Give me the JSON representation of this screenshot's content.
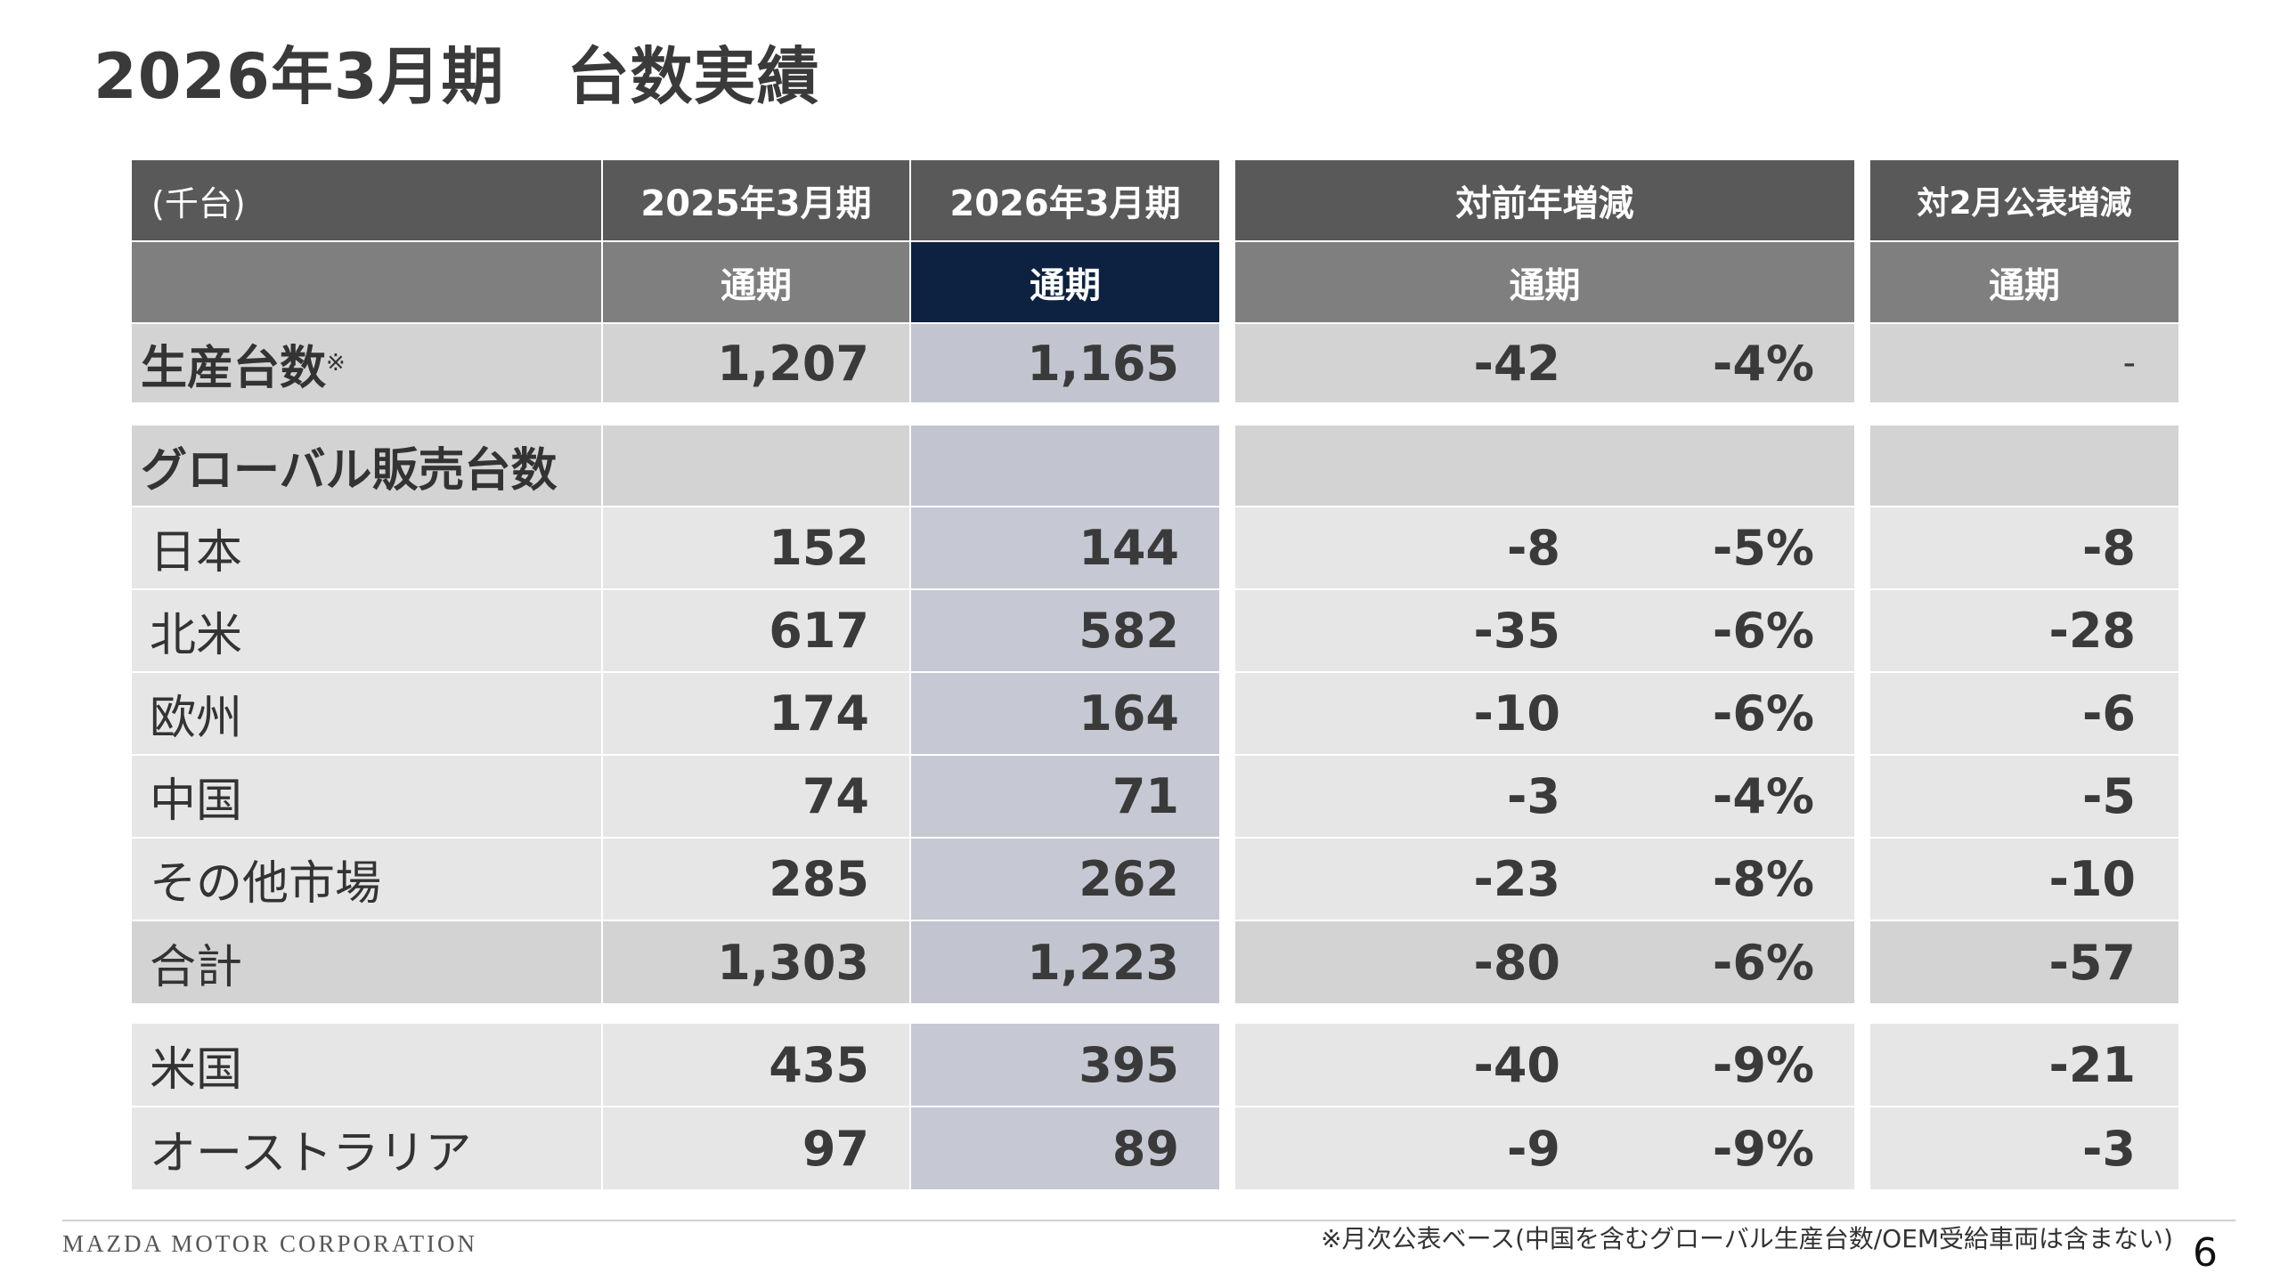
{
  "title": "2026年3月期",
  "subtitle": "台数実績",
  "table": {
    "unit_label": "(千台)",
    "col_fy2025": "2025年3月期",
    "col_fy2026": "2026年3月期",
    "col_yoy": "対前年増減",
    "col_vs_feb": "対2月公表増減",
    "period_label": "通期",
    "production": {
      "label": "生産台数",
      "mark": "※",
      "fy2025": "1,207",
      "fy2026": "1,165",
      "yoy_abs": "-42",
      "yoy_pct": "-4%",
      "vs_feb": "-"
    },
    "global_sales_label": "グローバル販売台数",
    "regions": [
      {
        "label": "日本",
        "fy2025": "152",
        "fy2026": "144",
        "yoy_abs": "-8",
        "yoy_pct": "-5%",
        "vs_feb": "-8"
      },
      {
        "label": "北米",
        "fy2025": "617",
        "fy2026": "582",
        "yoy_abs": "-35",
        "yoy_pct": "-6%",
        "vs_feb": "-28"
      },
      {
        "label": "欧州",
        "fy2025": "174",
        "fy2026": "164",
        "yoy_abs": "-10",
        "yoy_pct": "-6%",
        "vs_feb": "-6"
      },
      {
        "label": "中国",
        "fy2025": "74",
        "fy2026": "71",
        "yoy_abs": "-3",
        "yoy_pct": "-4%",
        "vs_feb": "-5"
      },
      {
        "label": "その他市場",
        "fy2025": "285",
        "fy2026": "262",
        "yoy_abs": "-23",
        "yoy_pct": "-8%",
        "vs_feb": "-10"
      }
    ],
    "total": {
      "label": "合計",
      "fy2025": "1,303",
      "fy2026": "1,223",
      "yoy_abs": "-80",
      "yoy_pct": "-6%",
      "vs_feb": "-57"
    },
    "extra": [
      {
        "label": "米国",
        "fy2025": "435",
        "fy2026": "395",
        "yoy_abs": "-40",
        "yoy_pct": "-9%",
        "vs_feb": "-21"
      },
      {
        "label": "オーストラリア",
        "fy2025": "97",
        "fy2026": "89",
        "yoy_abs": "-9",
        "yoy_pct": "-9%",
        "vs_feb": "-3"
      }
    ]
  },
  "footer": {
    "company": "MAZDA MOTOR CORPORATION",
    "note": "※月次公表ベース(中国を含むグローバル生産台数/OEM受給車両は含まない)",
    "page": "6"
  },
  "colors": {
    "header_dark": "#595959",
    "header_mid": "#7f7f7f",
    "highlight_navy": "#0d2240",
    "row_light": "#e6e6e6",
    "row_dark": "#d3d3d3",
    "highlight_column": "#c6c9d3"
  }
}
